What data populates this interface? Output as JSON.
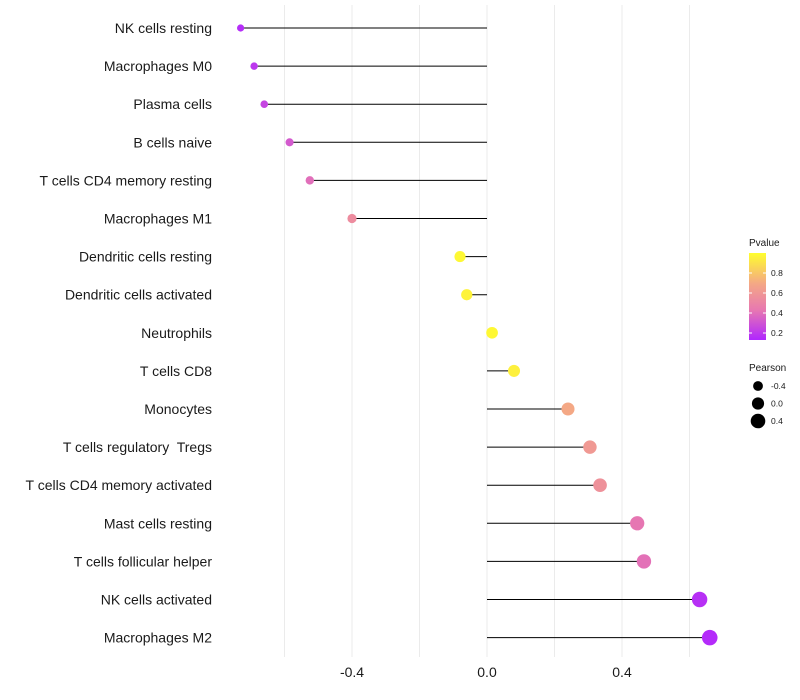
{
  "chart_data": {
    "type": "lollipop",
    "title": "",
    "xlabel": "",
    "ylabel": "",
    "xlim": [
      -0.75,
      0.82
    ],
    "xticks": [
      -0.4,
      0.0,
      0.4
    ],
    "xtick_labels": [
      "-0.4",
      "0.0",
      "0.4"
    ],
    "x_minor_gridlines": [
      -0.6,
      -0.2,
      0.2,
      0.6
    ],
    "categories": [
      "NK cells resting",
      "Macrophages M0",
      "Plasma cells",
      "B cells naive",
      "T cells CD4 memory resting",
      "Macrophages M1",
      "Dendritic cells resting",
      "Dendritic cells activated",
      "Neutrophils",
      "T cells CD8",
      "Monocytes",
      "T cells regulatory  Tregs",
      "T cells CD4 memory activated",
      "Mast cells resting",
      "T cells follicular helper",
      "NK cells activated",
      "Macrophages M2"
    ],
    "pearson": [
      -0.73,
      -0.69,
      -0.66,
      -0.585,
      -0.525,
      -0.4,
      -0.08,
      -0.06,
      0.015,
      0.08,
      0.24,
      0.305,
      0.335,
      0.445,
      0.465,
      0.63,
      0.66
    ],
    "pvalue": [
      0.16,
      0.2,
      0.25,
      0.33,
      0.41,
      0.55,
      0.98,
      0.96,
      0.98,
      0.95,
      0.7,
      0.62,
      0.58,
      0.44,
      0.42,
      0.17,
      0.15
    ],
    "legend": {
      "color": {
        "title": "Pvalue",
        "range": [
          0.13,
          1.0
        ],
        "ticks": [
          0.2,
          0.4,
          0.6,
          0.8
        ],
        "tick_labels": [
          "0.2",
          "0.4",
          "0.6",
          "0.8"
        ],
        "colors": [
          "#b026ff",
          "#e879b0",
          "#f4a885",
          "#fffe2e"
        ]
      },
      "size": {
        "title": "Pearson",
        "values": [
          -0.4,
          0.0,
          0.4
        ],
        "labels": [
          "-0.4",
          "0.0",
          "0.4"
        ]
      }
    },
    "stem_color": "#000000",
    "grid": true
  }
}
